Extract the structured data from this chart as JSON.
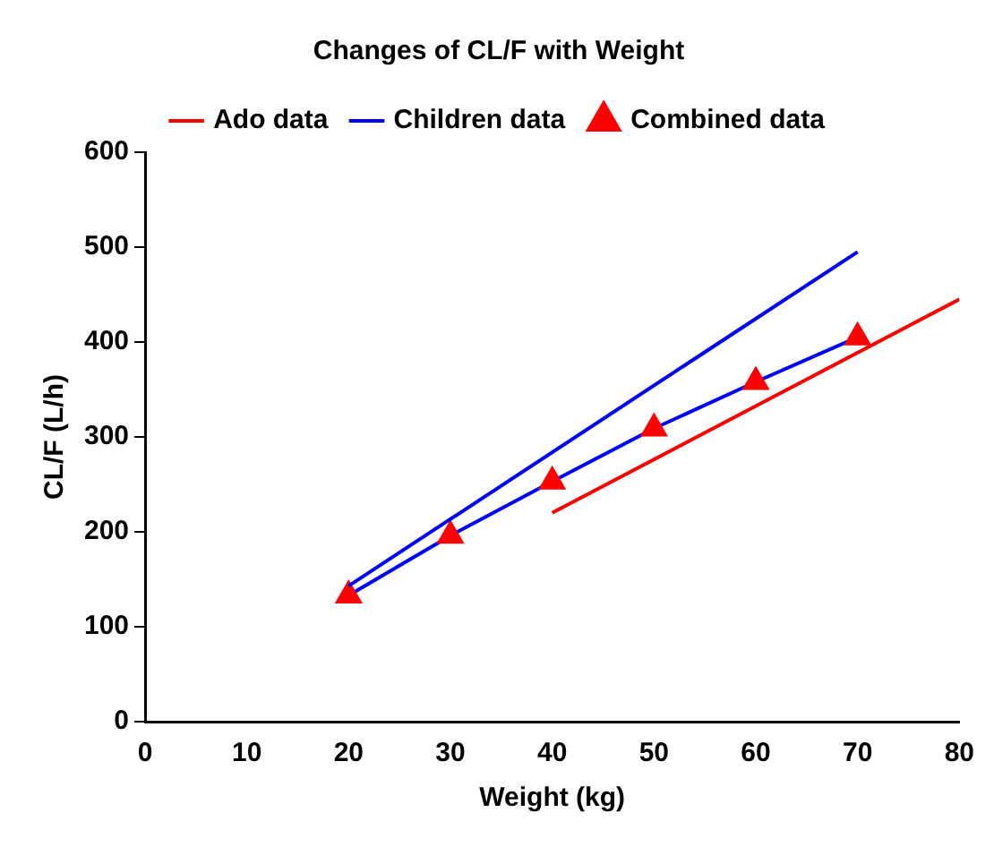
{
  "chart_data": {
    "type": "line",
    "title": "Changes of CL/F with Weight",
    "xlabel": "Weight (kg)",
    "ylabel": "CL/F (L/h)",
    "series": [
      {
        "name": "Ado data",
        "color": "#ff0000",
        "x": [
          40,
          80
        ],
        "values": [
          220,
          445
        ],
        "marker": "none"
      },
      {
        "name": "Children data",
        "color": "#0000ff",
        "x": [
          20,
          70
        ],
        "values": [
          143,
          495
        ],
        "marker": "none"
      },
      {
        "name": "Combined data",
        "color": "#0000ff",
        "colors": [
          "#ff0000",
          "#ff0000",
          "#ff0000",
          "#ff0000",
          "#ff0000",
          "#ff0000"
        ],
        "x": [
          20,
          30,
          40,
          50,
          60,
          70
        ],
        "values": [
          133,
          196,
          253,
          309,
          358,
          405
        ],
        "marker": "triangle"
      }
    ],
    "xlim": [
      0,
      80
    ],
    "xticks": [
      0,
      10,
      20,
      30,
      40,
      50,
      60,
      70,
      80
    ],
    "ylim": [
      0,
      600
    ],
    "yticks": [
      0,
      100,
      200,
      300,
      400,
      500,
      600
    ],
    "grid": false,
    "legend": "top",
    "line_style": "solid"
  }
}
